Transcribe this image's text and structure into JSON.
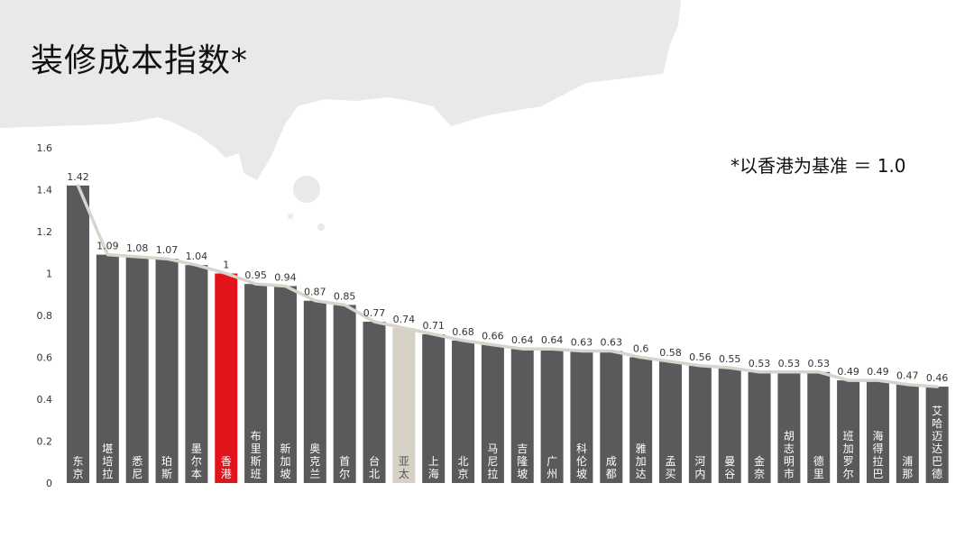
{
  "title": "装修成本指数*",
  "note": "*以香港为基准 ＝ 1.0",
  "colors": {
    "bar_default": "#5a5a5c",
    "bar_highlight": "#e2141b",
    "bar_asia_pacific": "#d6d1c4",
    "trend_line": "#d8d4cc",
    "background_brush": "#e9e9e9"
  },
  "chart_data": {
    "type": "bar",
    "title": "装修成本指数*",
    "categories": [
      "东京",
      "堪培拉",
      "悉尼",
      "珀斯",
      "墨尔本",
      "香港",
      "布里斯班",
      "新加坡",
      "奥克兰",
      "首尔",
      "台北",
      "亚太",
      "上海",
      "北京",
      "马尼拉",
      "吉隆坡",
      "广州",
      "科伦坡",
      "成都",
      "雅加达",
      "孟买",
      "河内",
      "曼谷",
      "金奈",
      "胡志明市",
      "德里",
      "班加罗尔",
      "海得拉巴",
      "浦那",
      "艾哈迈达巴德"
    ],
    "values": [
      1.42,
      1.09,
      1.08,
      1.07,
      1.04,
      1,
      0.95,
      0.94,
      0.87,
      0.85,
      0.77,
      0.74,
      0.71,
      0.68,
      0.66,
      0.64,
      0.64,
      0.63,
      0.63,
      0.6,
      0.58,
      0.56,
      0.55,
      0.53,
      0.53,
      0.53,
      0.49,
      0.49,
      0.47,
      0.46
    ],
    "value_labels": [
      "1.42",
      "1.09",
      "1.08",
      "1.07",
      "1.04",
      "1",
      "0.95",
      "0.94",
      "0.87",
      "0.85",
      "0.77",
      "0.74",
      "0.71",
      "0.68",
      "0.66",
      "0.64",
      "0.64",
      "0.63",
      "0.63",
      "0.6",
      "0.58",
      "0.56",
      "0.55",
      "0.53",
      "0.53",
      "0.53",
      "0.49",
      "0.49",
      "0.47",
      "0.46"
    ],
    "highlight": {
      "香港": "bar_highlight",
      "亚太": "bar_asia_pacific"
    },
    "ylim": [
      0,
      1.6
    ],
    "yticks": [
      "0",
      "0.2",
      "0.4",
      "0.6",
      "0.8",
      "1",
      "1.2",
      "1.4",
      "1.6"
    ],
    "grid": false,
    "trend_line": true,
    "xlabel": "",
    "ylabel": ""
  }
}
